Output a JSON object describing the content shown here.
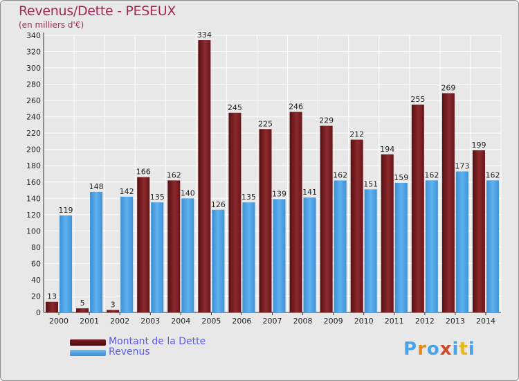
{
  "chart_data": {
    "type": "bar",
    "title": "Revenus/Dette - PESEUX",
    "subtitle": "(en milliers d'€)",
    "categories": [
      "2000",
      "2001",
      "2002",
      "2003",
      "2004",
      "2005",
      "2006",
      "2007",
      "2008",
      "2009",
      "2010",
      "2011",
      "2012",
      "2013",
      "2014"
    ],
    "series": [
      {
        "name": "Montant de la Dette",
        "color": "#7a1e22",
        "values": [
          13,
          5,
          3,
          166,
          162,
          334,
          245,
          225,
          246,
          229,
          212,
          194,
          255,
          269,
          199
        ]
      },
      {
        "name": "Revenus",
        "color": "#4aa3e6",
        "values": [
          119,
          148,
          142,
          135,
          140,
          126,
          135,
          139,
          141,
          162,
          151,
          159,
          162,
          173,
          162
        ]
      }
    ],
    "ylim": [
      0,
      340
    ],
    "yticks": [
      0,
      20,
      40,
      60,
      80,
      100,
      120,
      140,
      160,
      180,
      200,
      220,
      240,
      260,
      280,
      300,
      320,
      340
    ],
    "grid": true,
    "legend_position": "bottom-left"
  },
  "logo": {
    "text": "Proxiti",
    "letter_colors": [
      "#4aa3e6",
      "#e68a1e",
      "#4aa3e6",
      "#d04a2a",
      "#4aa3e6",
      "#e6b81e",
      "#4aa3e6"
    ]
  }
}
